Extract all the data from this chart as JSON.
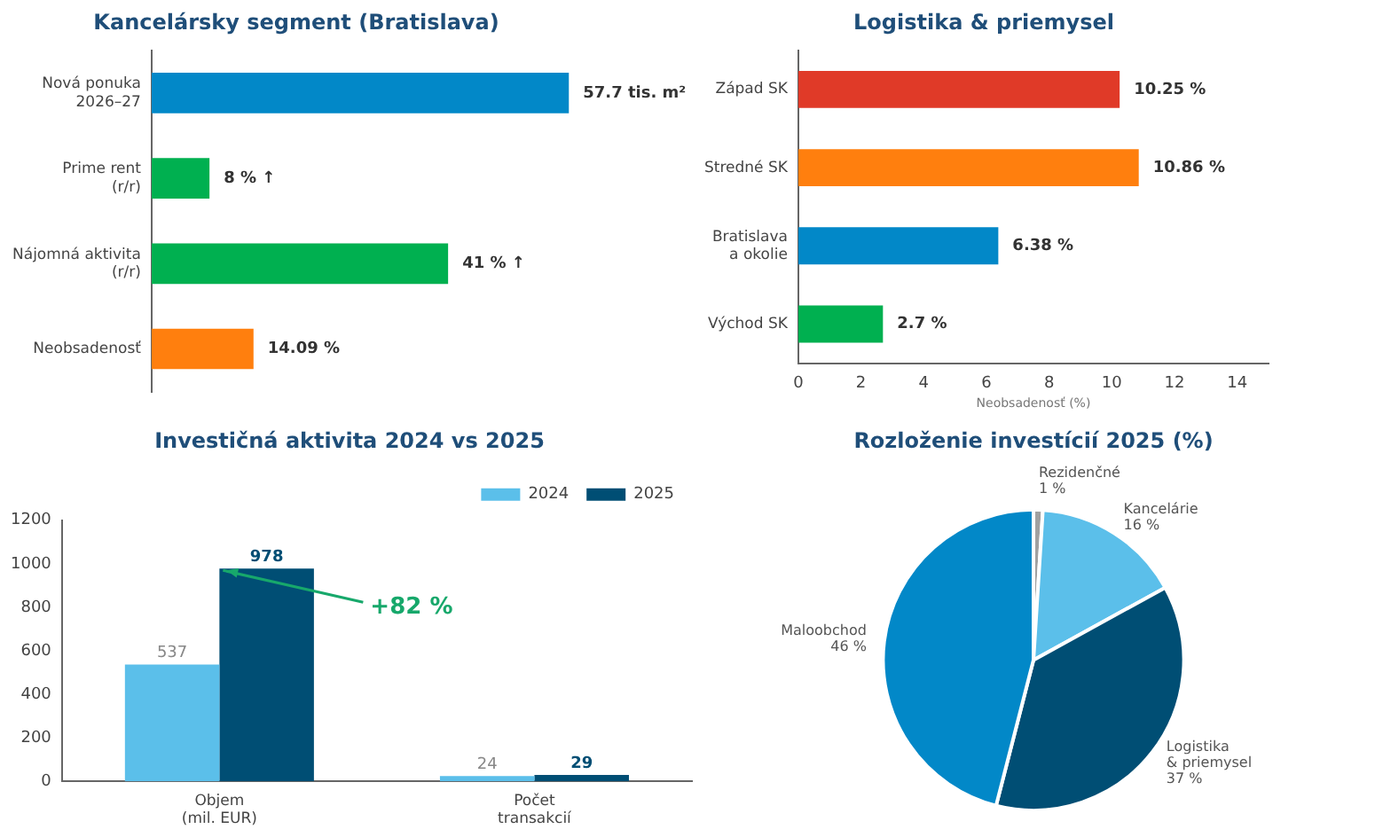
{
  "chart_data": [
    {
      "type": "bar",
      "orientation": "horizontal",
      "title": "Kancelársky segment (Bratislava)",
      "categories": [
        "Nová ponuka\n2026–27",
        "Prime rent\n(r/r)",
        "Nájomná aktivita\n(r/r)",
        "Neobsadenosť"
      ],
      "values": [
        57.7,
        8,
        41,
        14.09
      ],
      "colors": [
        "#0288c8",
        "#00b050",
        "#00b050",
        "#ff7f0e"
      ],
      "value_labels": [
        "57.7 tis. m²",
        "8 % ↑",
        "41 % ↑",
        "14.09 %"
      ],
      "tick_labels": "y"
    },
    {
      "type": "bar",
      "orientation": "horizontal",
      "title": "Logistika & priemysel",
      "xlabel": "Neobsadenosť (%)",
      "categories": [
        "Západ SK",
        "Stredné SK",
        "Bratislava\na okolie",
        "Východ SK"
      ],
      "values": [
        10.25,
        10.86,
        6.38,
        2.7
      ],
      "colors": [
        "#e03a28",
        "#ff7f0e",
        "#0288c8",
        "#00b050"
      ],
      "value_labels": [
        "10.25 %",
        "10.86 %",
        "6.38 %",
        "2.7 %"
      ],
      "xlim": [
        0,
        15
      ],
      "xticks": [
        0,
        2,
        4,
        6,
        8,
        10,
        12,
        14
      ]
    },
    {
      "type": "bar",
      "title": "Investičná aktivita 2024 vs 2025",
      "categories": [
        "Objem\n(mil. EUR)",
        "Počet\ntransakcií"
      ],
      "series": [
        {
          "name": "2024",
          "color": "#5bbfea",
          "values": [
            537,
            24
          ]
        },
        {
          "name": "2025",
          "color": "#004e74",
          "values": [
            978,
            29
          ]
        }
      ],
      "ylim": [
        0,
        1200
      ],
      "yticks": [
        0,
        200,
        400,
        600,
        800,
        1000,
        1200
      ],
      "data_labels": true,
      "legend": "top right",
      "annotations": [
        {
          "text": "+82 %",
          "x": "Objem\n(mil. EUR)",
          "y": 978
        }
      ]
    },
    {
      "type": "pie",
      "title": "Rozloženie investícií 2025 (%)",
      "categories": [
        "Rezidenčné",
        "Kancelárie",
        "Logistika\n& priemysel",
        "Maloobchod"
      ],
      "values": [
        1,
        16,
        37,
        46
      ],
      "colors": [
        "#a0a0a0",
        "#5bbfea",
        "#004e74",
        "#0288c8"
      ],
      "value_labels": [
        "1 %",
        "16 %",
        "37 %",
        "46 %"
      ]
    }
  ]
}
